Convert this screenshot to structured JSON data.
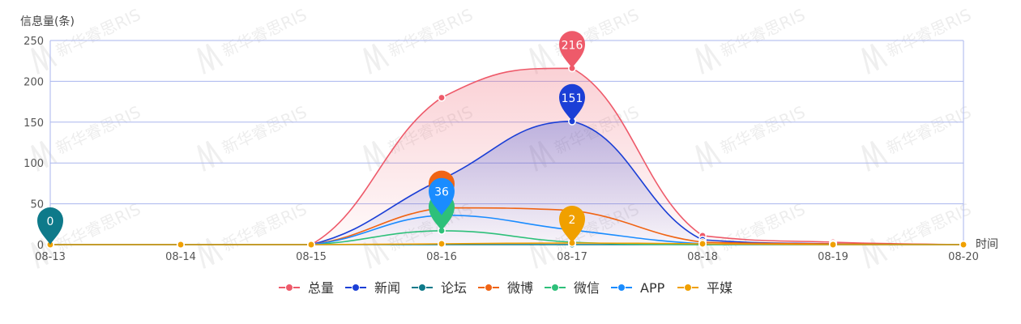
{
  "watermark": "新华睿思RIS",
  "chart_data": {
    "type": "line",
    "smooth": true,
    "ylabel": "信息量(条)",
    "xlabel": "时间",
    "categories": [
      "08-13",
      "08-14",
      "08-15",
      "08-16",
      "08-17",
      "08-18",
      "08-19",
      "08-20"
    ],
    "ylim": [
      0,
      250
    ],
    "yticks": [
      0,
      50,
      100,
      150,
      200,
      250
    ],
    "grid": true,
    "legend_position": "bottom",
    "series": [
      {
        "name": "总量",
        "color": "#ee5a6a",
        "values": [
          0,
          0,
          0,
          180,
          216,
          11,
          3,
          0
        ],
        "area": true,
        "max_marker": 216
      },
      {
        "name": "新闻",
        "color": "#1b3fd6",
        "values": [
          0,
          0,
          0,
          80,
          151,
          6,
          1,
          0
        ],
        "area": true,
        "max_marker": 151
      },
      {
        "name": "论坛",
        "color": "#0e7a8a",
        "values": [
          0,
          0,
          0,
          0,
          0,
          0,
          0,
          0
        ],
        "max_marker": 0
      },
      {
        "name": "微博",
        "color": "#f06414",
        "values": [
          0,
          0,
          0,
          45,
          42,
          3,
          1,
          0
        ]
      },
      {
        "name": "微信",
        "color": "#2ec07a",
        "values": [
          0,
          0,
          0,
          17,
          3,
          0,
          0,
          0
        ]
      },
      {
        "name": "APP",
        "color": "#1a8cff",
        "values": [
          0,
          0,
          0,
          36,
          18,
          1,
          0,
          0
        ],
        "max_marker": 36
      },
      {
        "name": "平媒",
        "color": "#f0a000",
        "values": [
          0,
          0,
          0,
          1,
          2,
          1,
          0,
          0
        ],
        "max_marker": 2
      }
    ]
  }
}
